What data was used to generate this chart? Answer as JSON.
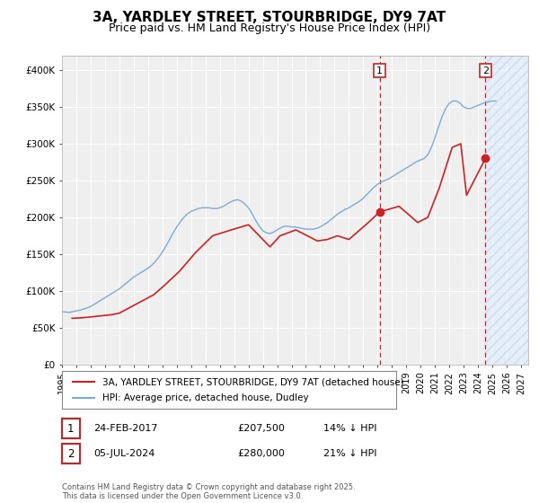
{
  "title": "3A, YARDLEY STREET, STOURBRIDGE, DY9 7AT",
  "subtitle": "Price paid vs. HM Land Registry's House Price Index (HPI)",
  "title_fontsize": 11,
  "subtitle_fontsize": 9,
  "background_color": "#ffffff",
  "plot_bg_color": "#efefef",
  "grid_color": "#ffffff",
  "hpi_color": "#7aadd4",
  "price_color": "#cc2222",
  "ylim": [
    0,
    420000
  ],
  "xlim_start": 1995.0,
  "xlim_end": 2027.5,
  "yticks": [
    0,
    50000,
    100000,
    150000,
    200000,
    250000,
    300000,
    350000,
    400000
  ],
  "ytick_labels": [
    "£0",
    "£50K",
    "£100K",
    "£150K",
    "£200K",
    "£250K",
    "£300K",
    "£350K",
    "£400K"
  ],
  "xticks": [
    1995,
    1996,
    1997,
    1998,
    1999,
    2000,
    2001,
    2002,
    2003,
    2004,
    2005,
    2006,
    2007,
    2008,
    2009,
    2010,
    2011,
    2012,
    2013,
    2014,
    2015,
    2016,
    2017,
    2018,
    2019,
    2020,
    2021,
    2022,
    2023,
    2024,
    2025,
    2026,
    2027
  ],
  "marker1_x": 2017.15,
  "marker1_y": 207500,
  "marker1_label": "1",
  "marker1_date": "24-FEB-2017",
  "marker1_price": "£207,500",
  "marker1_hpi": "14% ↓ HPI",
  "marker2_x": 2024.52,
  "marker2_y": 280000,
  "marker2_label": "2",
  "marker2_date": "05-JUL-2024",
  "marker2_price": "£280,000",
  "marker2_hpi": "21% ↓ HPI",
  "legend_label1": "3A, YARDLEY STREET, STOURBRIDGE, DY9 7AT (detached house)",
  "legend_label2": "HPI: Average price, detached house, Dudley",
  "footer": "Contains HM Land Registry data © Crown copyright and database right 2025.\nThis data is licensed under the Open Government Licence v3.0.",
  "hpi_data_x": [
    1995.0,
    1995.25,
    1995.5,
    1995.75,
    1996.0,
    1996.25,
    1996.5,
    1996.75,
    1997.0,
    1997.25,
    1997.5,
    1997.75,
    1998.0,
    1998.25,
    1998.5,
    1998.75,
    1999.0,
    1999.25,
    1999.5,
    1999.75,
    2000.0,
    2000.25,
    2000.5,
    2000.75,
    2001.0,
    2001.25,
    2001.5,
    2001.75,
    2002.0,
    2002.25,
    2002.5,
    2002.75,
    2003.0,
    2003.25,
    2003.5,
    2003.75,
    2004.0,
    2004.25,
    2004.5,
    2004.75,
    2005.0,
    2005.25,
    2005.5,
    2005.75,
    2006.0,
    2006.25,
    2006.5,
    2006.75,
    2007.0,
    2007.25,
    2007.5,
    2007.75,
    2008.0,
    2008.25,
    2008.5,
    2008.75,
    2009.0,
    2009.25,
    2009.5,
    2009.75,
    2010.0,
    2010.25,
    2010.5,
    2010.75,
    2011.0,
    2011.25,
    2011.5,
    2011.75,
    2012.0,
    2012.25,
    2012.5,
    2012.75,
    2013.0,
    2013.25,
    2013.5,
    2013.75,
    2014.0,
    2014.25,
    2014.5,
    2014.75,
    2015.0,
    2015.25,
    2015.5,
    2015.75,
    2016.0,
    2016.25,
    2016.5,
    2016.75,
    2017.0,
    2017.25,
    2017.5,
    2017.75,
    2018.0,
    2018.25,
    2018.5,
    2018.75,
    2019.0,
    2019.25,
    2019.5,
    2019.75,
    2020.0,
    2020.25,
    2020.5,
    2020.75,
    2021.0,
    2021.25,
    2021.5,
    2021.75,
    2022.0,
    2022.25,
    2022.5,
    2022.75,
    2023.0,
    2023.25,
    2023.5,
    2023.75,
    2024.0,
    2024.25,
    2024.5,
    2024.75,
    2025.0,
    2025.25
  ],
  "hpi_data_y": [
    72000,
    71500,
    71000,
    72000,
    73000,
    74000,
    75500,
    77000,
    79000,
    82000,
    85000,
    88000,
    91000,
    94000,
    97000,
    100000,
    103000,
    107000,
    111000,
    115000,
    119000,
    122000,
    125000,
    128000,
    131000,
    135000,
    140000,
    146000,
    153000,
    161000,
    170000,
    179000,
    187000,
    194000,
    200000,
    205000,
    208000,
    210000,
    212000,
    213000,
    213000,
    213000,
    212000,
    212000,
    213000,
    215000,
    218000,
    221000,
    223000,
    224000,
    222000,
    218000,
    213000,
    205000,
    196000,
    188000,
    182000,
    179000,
    178000,
    180000,
    183000,
    186000,
    188000,
    188000,
    187000,
    187000,
    186000,
    185000,
    184000,
    184000,
    184000,
    185000,
    187000,
    190000,
    193000,
    197000,
    201000,
    205000,
    208000,
    211000,
    213000,
    216000,
    219000,
    222000,
    226000,
    231000,
    236000,
    241000,
    245000,
    248000,
    250000,
    252000,
    255000,
    258000,
    261000,
    264000,
    267000,
    270000,
    273000,
    276000,
    278000,
    280000,
    285000,
    295000,
    308000,
    323000,
    337000,
    348000,
    355000,
    358000,
    358000,
    355000,
    350000,
    348000,
    348000,
    350000,
    352000,
    354000,
    356000,
    357000,
    358000,
    358000
  ],
  "price_data_x": [
    1995.7,
    1996.3,
    1997.1,
    1998.5,
    1999.0,
    2001.4,
    2002.1,
    2003.2,
    2004.3,
    2005.5,
    2006.8,
    2008.0,
    2009.5,
    2010.2,
    2011.3,
    2012.8,
    2013.5,
    2014.2,
    2015.0,
    2016.3,
    2017.15,
    2018.5,
    2019.8,
    2020.5,
    2021.3,
    2022.2,
    2022.8,
    2023.2,
    2024.52
  ],
  "price_data_y": [
    63000,
    63500,
    65000,
    68000,
    70000,
    95000,
    107000,
    127000,
    152000,
    175000,
    183000,
    190000,
    160000,
    175000,
    183000,
    168000,
    170000,
    175000,
    170000,
    192000,
    207500,
    215000,
    193000,
    200000,
    240000,
    295000,
    300000,
    230000,
    280000
  ]
}
